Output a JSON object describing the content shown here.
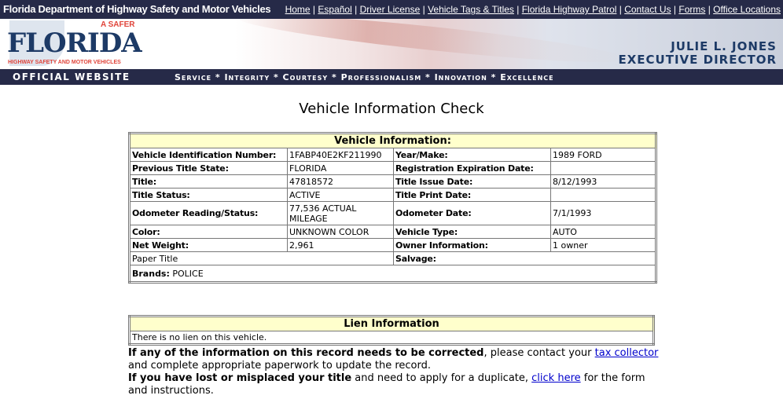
{
  "header": {
    "site_title": "Florida Department of Highway Safety and Motor Vehicles",
    "links": [
      "Home",
      "Español",
      "Driver License",
      "Vehicle Tags & Titles",
      "Florida Highway Patrol",
      "Contact Us",
      "Forms",
      "Office Locations"
    ],
    "logo": {
      "tagline": "A SAFER",
      "name": "FLORIDA",
      "subtitle": "HIGHWAY SAFETY AND MOTOR VEHICLES"
    },
    "director_name": "JULIE L. JONES",
    "director_title": "EXECUTIVE DIRECTOR",
    "official": "OFFICIAL WEBSITE",
    "values": "Service * Integrity * Courtesy * Professionalism * Innovation * Excellence"
  },
  "page_title": "Vehicle Information Check",
  "vehicle": {
    "heading": "Vehicle Information:",
    "rows": [
      [
        "Vehicle Identification Number:",
        "1FABP40E2KF211990",
        "Year/Make:",
        "1989 FORD"
      ],
      [
        "Previous Title State:",
        "FLORIDA",
        "Registration Expiration Date:",
        ""
      ],
      [
        "Title:",
        "47818572",
        "Title Issue Date:",
        "8/12/1993"
      ],
      [
        "Title Status:",
        "ACTIVE",
        "Title Print Date:",
        ""
      ],
      [
        "Odometer Reading/Status:",
        "77,536 ACTUAL MILEAGE",
        "Odometer Date:",
        "7/1/1993"
      ],
      [
        "Color:",
        "UNKNOWN COLOR",
        "Vehicle Type:",
        "AUTO"
      ],
      [
        "Net Weight:",
        "2,961",
        "Owner Information:",
        "1 owner"
      ]
    ],
    "paper_title": "Paper Title",
    "salvage_label": "Salvage:",
    "brands_label": "Brands:",
    "brands_value": "POLICE"
  },
  "lien": {
    "heading": "Lien Information",
    "text": "There is no lien on this vehicle."
  },
  "notes": {
    "correct_bold": "If any of the information on this record needs to be corrected",
    "correct_text": ", please contact your ",
    "tax_collector": "tax collector",
    "correct_end": " and complete appropriate paperwork to update the record.",
    "lost_bold": "If you have lost or misplaced your title",
    "lost_text": " and need to apply for a duplicate, ",
    "click_here": "click here",
    "lost_end": " for the form and instructions."
  }
}
